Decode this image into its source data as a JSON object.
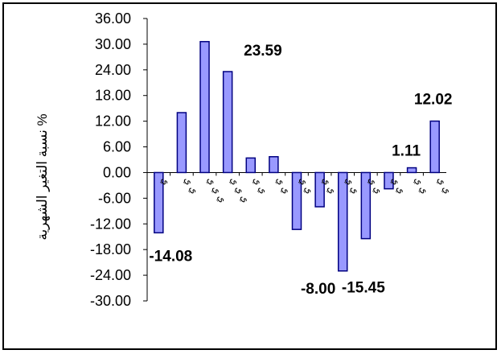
{
  "chart_data": {
    "type": "bar",
    "ylabel": "نسبة التغير الشهرية %",
    "ylim": [
      -30,
      36
    ],
    "yticks": [
      "36.00",
      "30.00",
      "24.00",
      "18.00",
      "12.00",
      "6.00",
      "0.00",
      "-6.00",
      "-12.00",
      "-18.00",
      "-24.00",
      "-30.00"
    ],
    "categories": [
      "ي",
      "ي ي",
      "ي ي ي",
      "ي ي ي",
      "ي ي",
      "ي ي",
      "ي ي",
      "ي ي",
      "ي ي",
      "ي ي",
      "ي ي",
      "ي ي",
      "ي ي"
    ],
    "values": [
      -14.08,
      14.0,
      30.6,
      23.59,
      3.4,
      3.7,
      -13.3,
      -8.0,
      -23.0,
      -15.45,
      -3.8,
      1.11,
      12.02
    ],
    "data_labels": [
      "-14.08",
      "",
      "",
      "23.59",
      "",
      "",
      "",
      "-8.00",
      "",
      "-15.45",
      "",
      "1.11",
      "12.02"
    ],
    "bar_color": "#9999ff",
    "bar_border": "#000080",
    "grid": false
  }
}
